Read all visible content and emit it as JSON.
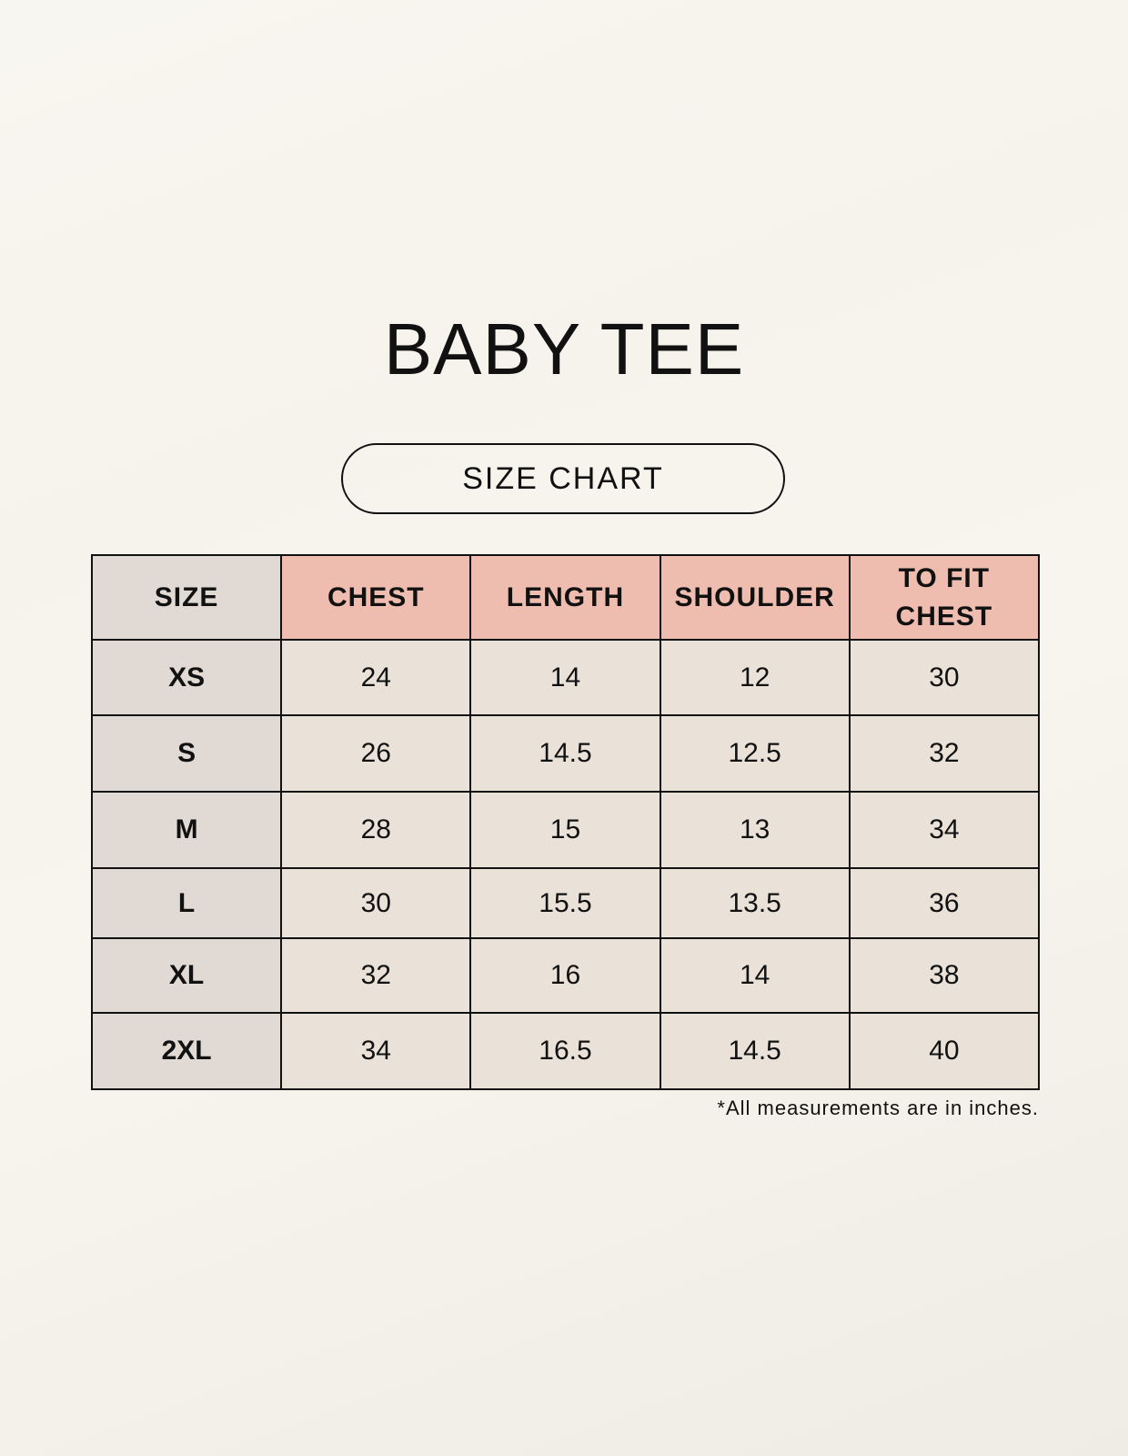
{
  "title": "BABY TEE",
  "subtitle": "SIZE CHART",
  "table": {
    "headers": [
      "SIZE",
      "CHEST",
      "LENGTH",
      "SHOULDER",
      "TO FIT CHEST"
    ],
    "rows": [
      [
        "XS",
        "24",
        "14",
        "12",
        "30"
      ],
      [
        "S",
        "26",
        "14.5",
        "12.5",
        "32"
      ],
      [
        "M",
        "28",
        "15",
        "13",
        "34"
      ],
      [
        "L",
        "30",
        "15.5",
        "13.5",
        "36"
      ],
      [
        "XL",
        "32",
        "16",
        "14",
        "38"
      ],
      [
        "2XL",
        "34",
        "16.5",
        "14.5",
        "40"
      ]
    ]
  },
  "footnote": "*All measurements are in inches.",
  "colors": {
    "header_accent": "#eebdaf",
    "size_column": "#e1d9d4",
    "cell": "#eae2d8"
  }
}
